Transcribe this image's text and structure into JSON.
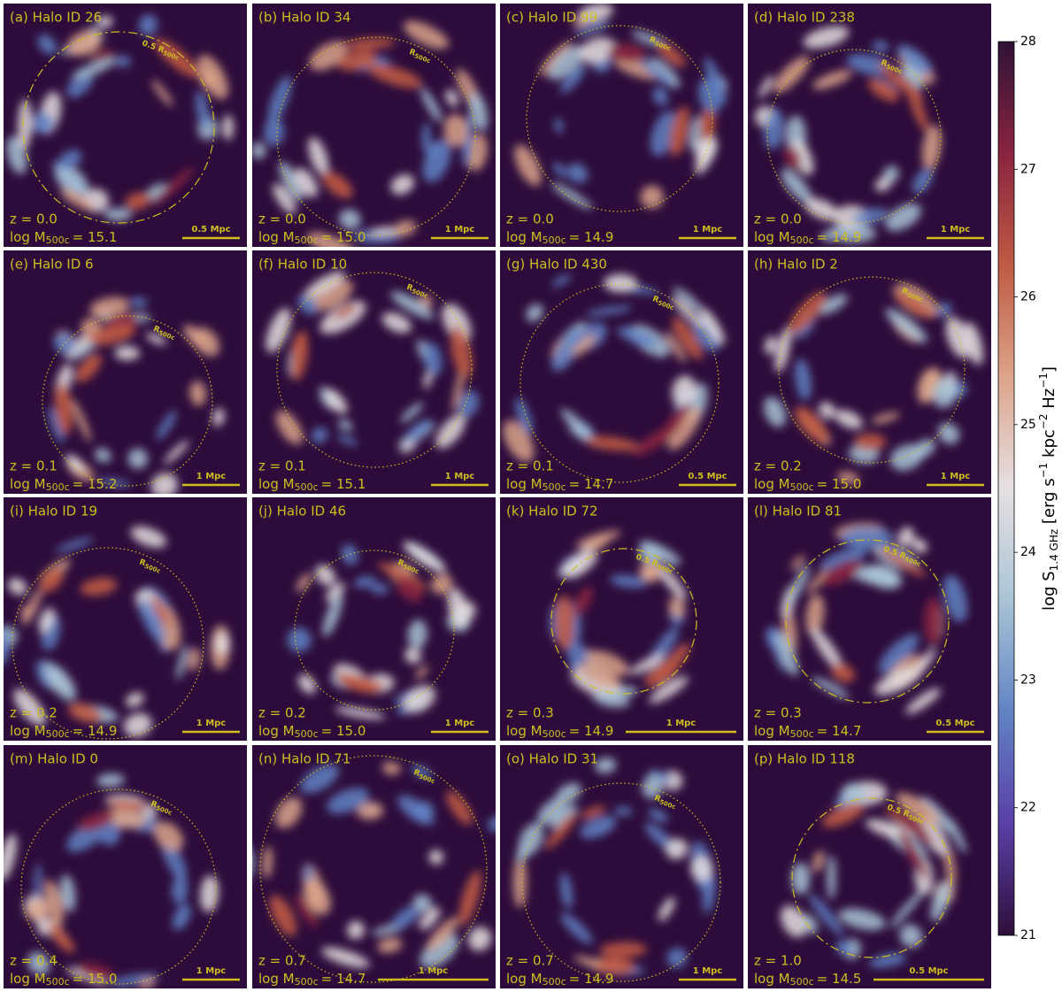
{
  "chart_data": {
    "type": "image-grid",
    "mass_symbol": "log M",
    "mass_subscript": "500c",
    "circle_color": "#cdbd1f",
    "background_color": "#2d0c3b",
    "panels": [
      {
        "title": "(a) Halo ID 26",
        "redshift": "z = 0.0",
        "mass": "= 15.1",
        "scale": "0.5 Mpc",
        "radius": "0.5 R",
        "circle_style": "dashdot"
      },
      {
        "title": "(b) Halo ID 34",
        "redshift": "z = 0.0",
        "mass": "= 15.0",
        "scale": "1 Mpc",
        "radius": "R",
        "circle_style": "dotted"
      },
      {
        "title": "(c) Halo ID 99",
        "redshift": "z = 0.0",
        "mass": "= 14.9",
        "scale": "1 Mpc",
        "radius": "R",
        "circle_style": "dotted"
      },
      {
        "title": "(d) Halo ID 238",
        "redshift": "z = 0.0",
        "mass": "= 14.9",
        "scale": "1 Mpc",
        "radius": "R",
        "circle_style": "dotted"
      },
      {
        "title": "(e) Halo ID 6",
        "redshift": "z = 0.1",
        "mass": "= 15.2",
        "scale": "1 Mpc",
        "radius": "R",
        "circle_style": "dotted"
      },
      {
        "title": "(f) Halo ID 10",
        "redshift": "z = 0.1",
        "mass": "= 15.1",
        "scale": "1 Mpc",
        "radius": "R",
        "circle_style": "dotted"
      },
      {
        "title": "(g) Halo ID 430",
        "redshift": "z = 0.1",
        "mass": "= 14.7",
        "scale": "0.5 Mpc",
        "radius": "R",
        "circle_style": "dotted"
      },
      {
        "title": "(h) Halo ID 2",
        "redshift": "z = 0.2",
        "mass": "= 15.0",
        "scale": "1 Mpc",
        "radius": "R",
        "circle_style": "dotted"
      },
      {
        "title": "(i) Halo ID 19",
        "redshift": "z = 0.2",
        "mass": "= 14.9",
        "scale": "1 Mpc",
        "radius": "R",
        "circle_style": "dotted"
      },
      {
        "title": "(j) Halo ID 46",
        "redshift": "z = 0.2",
        "mass": "= 15.0",
        "scale": "1 Mpc",
        "radius": "R",
        "circle_style": "dotted"
      },
      {
        "title": "(k) Halo ID 72",
        "redshift": "z = 0.3",
        "mass": "= 14.9",
        "scale": "1 Mpc",
        "radius": "0.5 R",
        "circle_style": "dashdot"
      },
      {
        "title": "(l) Halo ID 81",
        "redshift": "z = 0.3",
        "mass": "= 14.7",
        "scale": "0.5 Mpc",
        "radius": "0.5 R",
        "circle_style": "dashdot"
      },
      {
        "title": "(m) Halo ID 0",
        "redshift": "z = 0.4",
        "mass": "= 15.0",
        "scale": "1 Mpc",
        "radius": "R",
        "circle_style": "dotted"
      },
      {
        "title": "(n) Halo ID 71",
        "redshift": "z = 0.7",
        "mass": "= 14.7",
        "scale": "1 Mpc",
        "radius": "R",
        "circle_style": "dotted"
      },
      {
        "title": "(o) Halo ID 31",
        "redshift": "z = 0.7",
        "mass": "= 14.9",
        "scale": "1 Mpc",
        "radius": "R",
        "circle_style": "dotted"
      },
      {
        "title": "(p) Halo ID 118",
        "redshift": "z = 1.0",
        "mass": "= 14.5",
        "scale": "0.5 Mpc",
        "radius": "0.5 R",
        "circle_style": "dashdot"
      }
    ],
    "colorbar": {
      "label": [
        "log S",
        "1.4 GHz",
        " [erg s",
        "−1",
        " kpc",
        "−2",
        " Hz",
        "−1",
        "]"
      ],
      "lim": [
        21,
        28
      ],
      "ticks": [
        21,
        22,
        23,
        24,
        25,
        26,
        27,
        28
      ],
      "colormap": [
        "#2e0f3a",
        "#5a3fa8",
        "#6183c4",
        "#a9c4d6",
        "#e6e0e2",
        "#dca48a",
        "#bf5a44",
        "#8a2440",
        "#2f1236"
      ]
    }
  }
}
